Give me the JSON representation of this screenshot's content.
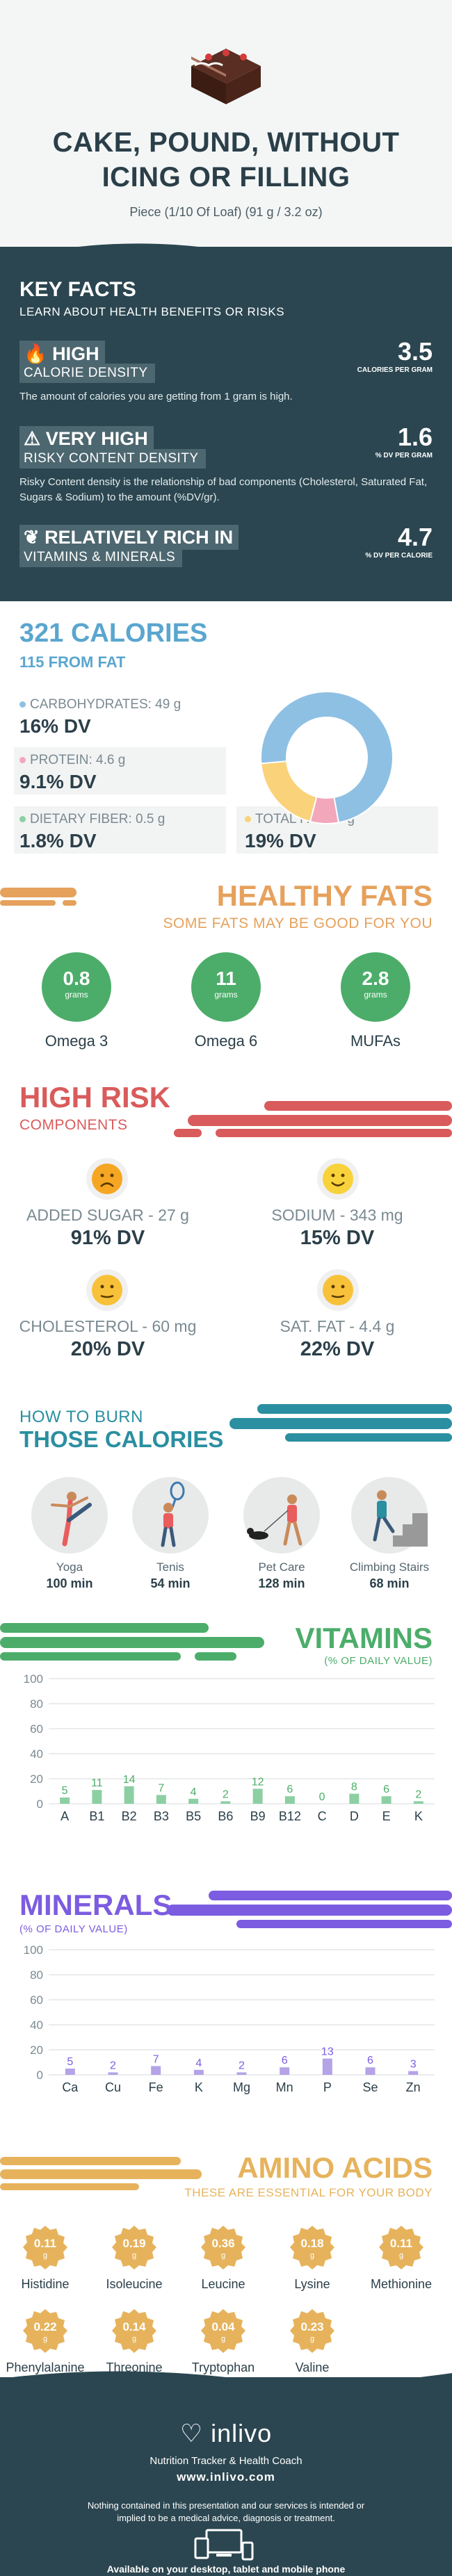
{
  "header": {
    "title_line1": "CAKE, POUND, WITHOUT",
    "title_line2": "ICING OR FILLING",
    "serving": "Piece (1/10 Of Loaf) (91 g / 3.2 oz)"
  },
  "key_facts": {
    "title": "KEY FACTS",
    "subtitle": "LEARN ABOUT HEALTH BENEFITS OR RISKS",
    "calorie_density": {
      "label": "HIGH",
      "sublabel": "CALORIE DENSITY",
      "desc": "The amount of calories you are getting from 1 gram is high.",
      "value": "3.5",
      "unit": "CALORIES PER GRAM"
    },
    "risky": {
      "label": "VERY HIGH",
      "sublabel": "RISKY CONTENT DENSITY",
      "desc": "Risky Content density is the relationship of bad components (Cholesterol, Saturated Fat, Sugars & Sodium) to the amount (%DV/gr).",
      "value": "1.6",
      "unit": "% DV PER GRAM"
    },
    "vitamins": {
      "label": "RELATIVELY RICH  IN",
      "sublabel": "VITAMINS & MINERALS",
      "value": "4.7",
      "unit": "% DV PER CALORIE"
    }
  },
  "calories": {
    "title": "321 CALORIES",
    "from_fat": "115 FROM FAT",
    "carbs": {
      "label": "CARBOHYDRATES: 49 g",
      "dv": "16% DV",
      "color": "#8ec0e4"
    },
    "protein": {
      "label": "PROTEIN: 4.6 g",
      "dv": "9.1% DV",
      "color": "#f2a7bb"
    },
    "fiber": {
      "label": "DIETARY FIBER: 0.5 g",
      "dv": "1.8% DV",
      "color": "#8ccfa3"
    },
    "fat": {
      "label": "TOTAL FAT: 13 g",
      "dv": "19% DV",
      "color": "#f9d27a"
    },
    "donut": [
      {
        "name": "carbohydrates",
        "value": 49,
        "color": "#8ec0e4"
      },
      {
        "name": "protein",
        "value": 4.6,
        "color": "#f2a7bb"
      },
      {
        "name": "fat",
        "value": 13,
        "color": "#f9d27a"
      }
    ]
  },
  "healthy_fats": {
    "title": "HEALTHY FATS",
    "subtitle": "SOME FATS MAY BE GOOD FOR YOU",
    "items": [
      {
        "value": "0.8",
        "unit": "grams",
        "name": "Omega 3"
      },
      {
        "value": "11",
        "unit": "grams",
        "name": "Omega 6"
      },
      {
        "value": "2.8",
        "unit": "grams",
        "name": "MUFAs"
      }
    ]
  },
  "high_risk": {
    "title": "HIGH RISK",
    "subtitle": "COMPONENTS",
    "items": [
      {
        "label": "ADDED SUGAR - 27 g",
        "dv": "91% DV",
        "face": "sad"
      },
      {
        "label": "SODIUM - 343 mg",
        "dv": "15% DV",
        "face": "happy"
      },
      {
        "label": "CHOLESTEROL - 60 mg",
        "dv": "20% DV",
        "face": "neutral"
      },
      {
        "label": "SAT. FAT - 4.4 g",
        "dv": "22% DV",
        "face": "neutral"
      }
    ]
  },
  "burn": {
    "title_line1": "HOW TO BURN",
    "title_line2": "THOSE CALORIES",
    "activities": [
      {
        "name": "Yoga",
        "minutes": "100 min"
      },
      {
        "name": "Tenis",
        "minutes": "54 min"
      },
      {
        "name": "Pet Care",
        "minutes": "128 min"
      },
      {
        "name": "Climbing Stairs",
        "minutes": "68 min"
      }
    ]
  },
  "vitamins": {
    "title": "VITAMINS",
    "subtitle": "(% OF DAILY VALUE)"
  },
  "minerals": {
    "title": "MINERALS",
    "subtitle": "(% OF DAILY VALUE)"
  },
  "chart_data": [
    {
      "type": "bar",
      "categories": [
        "A",
        "B1",
        "B2",
        "B3",
        "B5",
        "B6",
        "B9",
        "B12",
        "C",
        "D",
        "E",
        "K"
      ],
      "values": [
        5,
        11,
        14,
        7,
        4,
        2,
        12,
        6,
        0,
        8,
        6,
        2
      ],
      "ylim": [
        0,
        100
      ],
      "yticks": [
        0,
        20,
        40,
        60,
        80,
        100
      ],
      "color": "#8ccfa3",
      "label_color": "#4cad6a"
    },
    {
      "type": "bar",
      "categories": [
        "Ca",
        "Cu",
        "Fe",
        "K",
        "Mg",
        "Mn",
        "P",
        "Se",
        "Zn"
      ],
      "values": [
        5,
        2,
        7,
        4,
        2,
        6,
        13,
        6,
        3
      ],
      "ylim": [
        0,
        100
      ],
      "yticks": [
        0,
        20,
        40,
        60,
        80,
        100
      ],
      "color": "#b5a3e8",
      "label_color": "#7c5ce0"
    }
  ],
  "amino": {
    "title": "AMINO ACIDS",
    "subtitle": "THESE ARE ESSENTIAL FOR YOUR BODY",
    "items": [
      {
        "value": "0.11",
        "unit": "g",
        "name": "Histidine"
      },
      {
        "value": "0.19",
        "unit": "g",
        "name": "Isoleucine"
      },
      {
        "value": "0.36",
        "unit": "g",
        "name": "Leucine"
      },
      {
        "value": "0.18",
        "unit": "g",
        "name": "Lysine"
      },
      {
        "value": "0.11",
        "unit": "g",
        "name": "Methionine"
      },
      {
        "value": "0.22",
        "unit": "g",
        "name": "Phenylalanine"
      },
      {
        "value": "0.14",
        "unit": "g",
        "name": "Threonine"
      },
      {
        "value": "0.04",
        "unit": "g",
        "name": "Tryptophan"
      },
      {
        "value": "0.23",
        "unit": "g",
        "name": "Valine"
      }
    ]
  },
  "footer": {
    "logo": "inlivo",
    "tagline": "Nutrition Tracker & Health Coach",
    "url": "www.inlivo.com",
    "disclaimer": "Nothing contained in this presentation and our services is intended or implied to be a medical advice, diagnosis or treatment.",
    "available": "Available on your desktop, tablet and mobile phone"
  },
  "colors": {
    "dark": "#2b4650",
    "blue": "#5aa6cf",
    "green": "#4cad6a",
    "orange": "#e6a15c",
    "red": "#d95b5b",
    "teal": "#2a8fa0",
    "purple": "#7c5ce0",
    "gold": "#e6b35c"
  }
}
